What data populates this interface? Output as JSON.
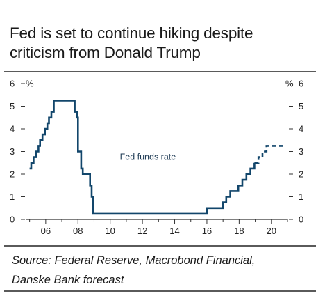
{
  "header": {
    "title_line1": "Fed is set to continue hiking despite",
    "title_line2": "criticism from Donald Trump"
  },
  "footer": {
    "source_line1": "Source: Federal Reserve, Macrobond Financial,",
    "source_line2": "Danske Bank forecast"
  },
  "colors": {
    "series": "#12466b",
    "axis": "#333333",
    "rules": "#5a5a5a"
  },
  "chart_data": {
    "type": "line",
    "title": "Fed is set to continue hiking despite criticism from Donald Trump",
    "ylabel_left": "%",
    "ylabel_right": "%",
    "ylim": [
      0,
      6
    ],
    "yticks": [
      0,
      1,
      2,
      3,
      4,
      5,
      6
    ],
    "xlim": [
      2004.8,
      2021.0
    ],
    "xticks": [
      {
        "value": 2006,
        "label": "06"
      },
      {
        "value": 2008,
        "label": "08"
      },
      {
        "value": 2010,
        "label": "10"
      },
      {
        "value": 2012,
        "label": "12"
      },
      {
        "value": 2014,
        "label": "14"
      },
      {
        "value": 2016,
        "label": "16"
      },
      {
        "value": 2018,
        "label": "18"
      },
      {
        "value": 2020,
        "label": "20"
      }
    ],
    "grid": false,
    "legend": "none",
    "series": [
      {
        "name": "Fed funds rate",
        "style": "solid",
        "points": [
          [
            2005.0,
            2.25
          ],
          [
            2005.1,
            2.5
          ],
          [
            2005.25,
            2.75
          ],
          [
            2005.4,
            3.0
          ],
          [
            2005.55,
            3.25
          ],
          [
            2005.65,
            3.5
          ],
          [
            2005.8,
            3.75
          ],
          [
            2005.95,
            4.0
          ],
          [
            2006.1,
            4.25
          ],
          [
            2006.2,
            4.5
          ],
          [
            2006.35,
            4.75
          ],
          [
            2006.5,
            5.25
          ],
          [
            2007.7,
            5.25
          ],
          [
            2007.8,
            4.75
          ],
          [
            2007.95,
            4.5
          ],
          [
            2008.0,
            3.0
          ],
          [
            2008.2,
            2.25
          ],
          [
            2008.3,
            2.0
          ],
          [
            2008.75,
            1.5
          ],
          [
            2008.85,
            1.0
          ],
          [
            2008.95,
            0.25
          ],
          [
            2015.95,
            0.25
          ],
          [
            2016.0,
            0.5
          ],
          [
            2016.95,
            0.5
          ],
          [
            2017.0,
            0.75
          ],
          [
            2017.2,
            1.0
          ],
          [
            2017.45,
            1.25
          ],
          [
            2017.95,
            1.5
          ],
          [
            2018.2,
            1.75
          ],
          [
            2018.45,
            2.0
          ],
          [
            2018.7,
            2.25
          ],
          [
            2018.95,
            2.5
          ]
        ]
      },
      {
        "name": "Danske Bank forecast",
        "style": "dashed",
        "points": [
          [
            2018.95,
            2.5
          ],
          [
            2019.2,
            2.75
          ],
          [
            2019.45,
            3.0
          ],
          [
            2019.7,
            3.25
          ],
          [
            2020.85,
            3.25
          ]
        ]
      }
    ],
    "annotations": [
      {
        "text": "Fed funds rate",
        "x": 2010.6,
        "y": 2.75
      }
    ]
  }
}
